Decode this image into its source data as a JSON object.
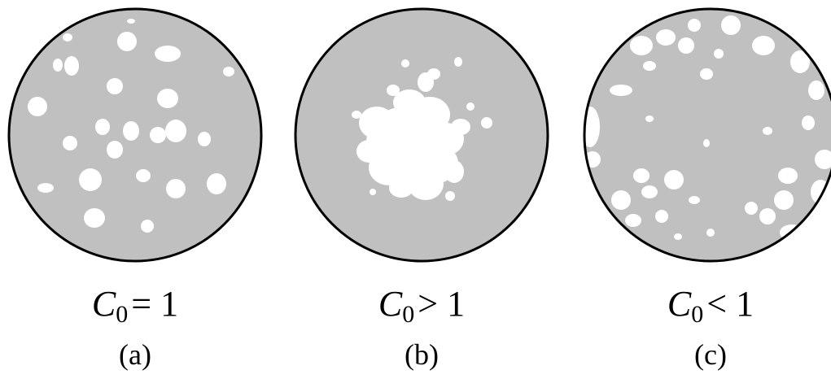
{
  "panels": [
    {
      "symbol": "C",
      "subscript": "0",
      "condition": "= 1",
      "label": "(a)"
    },
    {
      "symbol": "C",
      "subscript": "0",
      "condition": "> 1",
      "label": "(b)"
    },
    {
      "symbol": "C",
      "subscript": "0",
      "condition": "< 1",
      "label": "(c)"
    }
  ]
}
